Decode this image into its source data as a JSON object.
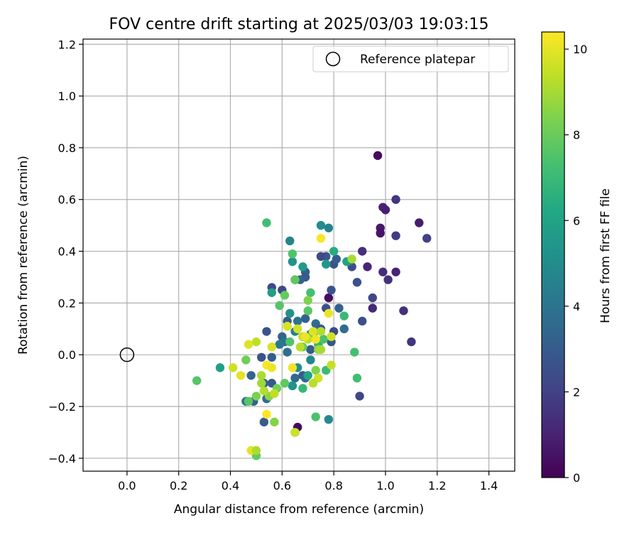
{
  "chart_data": {
    "type": "scatter",
    "title": "FOV centre drift starting at 2025/03/03 19:03:15",
    "xlabel": "Angular distance from reference (arcmin)",
    "ylabel": "Rotation from reference (arcmin)",
    "xlim": [
      -0.17,
      1.5
    ],
    "ylim": [
      -0.45,
      1.22
    ],
    "xticks": [
      0.0,
      0.2,
      0.4,
      0.6,
      0.8,
      1.0,
      1.2,
      1.4
    ],
    "xtick_labels": [
      "0.0",
      "0.2",
      "0.4",
      "0.6",
      "0.8",
      "1.0",
      "1.2",
      "1.4"
    ],
    "yticks": [
      -0.4,
      -0.2,
      0.0,
      0.2,
      0.4,
      0.6,
      0.8,
      1.0,
      1.2
    ],
    "ytick_labels": [
      "−0.4",
      "−0.2",
      "0.0",
      "0.2",
      "0.4",
      "0.6",
      "0.8",
      "1.0",
      "1.2"
    ],
    "grid": true,
    "legend": {
      "placement": "top-right",
      "entries": [
        "Reference platepar"
      ]
    },
    "reference_point": {
      "x": 0.0,
      "y": 0.0,
      "label": "Reference platepar"
    },
    "colorbar": {
      "label": "Hours from first FF file",
      "colormap": "viridis",
      "range": [
        0,
        10.4
      ],
      "ticks": [
        0,
        2,
        4,
        6,
        8,
        10
      ],
      "tick_labels": [
        "0",
        "2",
        "4",
        "6",
        "8",
        "10"
      ]
    },
    "points": [
      {
        "x": 0.97,
        "y": 0.77,
        "c": 0.3
      },
      {
        "x": 1.04,
        "y": 0.6,
        "c": 1.6
      },
      {
        "x": 0.99,
        "y": 0.57,
        "c": 1.0
      },
      {
        "x": 1.0,
        "y": 0.56,
        "c": 0.9
      },
      {
        "x": 1.13,
        "y": 0.51,
        "c": 0.8
      },
      {
        "x": 0.98,
        "y": 0.49,
        "c": 0.7
      },
      {
        "x": 0.98,
        "y": 0.47,
        "c": 0.6
      },
      {
        "x": 1.04,
        "y": 0.46,
        "c": 1.8
      },
      {
        "x": 1.16,
        "y": 0.45,
        "c": 2.0
      },
      {
        "x": 0.91,
        "y": 0.4,
        "c": 1.4
      },
      {
        "x": 0.93,
        "y": 0.34,
        "c": 1.1
      },
      {
        "x": 0.99,
        "y": 0.32,
        "c": 1.3
      },
      {
        "x": 1.04,
        "y": 0.32,
        "c": 1.0
      },
      {
        "x": 1.01,
        "y": 0.29,
        "c": 1.5
      },
      {
        "x": 0.89,
        "y": 0.28,
        "c": 2.6
      },
      {
        "x": 0.95,
        "y": 0.22,
        "c": 2.2
      },
      {
        "x": 0.95,
        "y": 0.18,
        "c": 1.2
      },
      {
        "x": 1.07,
        "y": 0.17,
        "c": 1.4
      },
      {
        "x": 0.91,
        "y": 0.13,
        "c": 2.5
      },
      {
        "x": 1.1,
        "y": 0.05,
        "c": 1.6
      },
      {
        "x": 0.9,
        "y": -0.16,
        "c": 2.2
      },
      {
        "x": 0.78,
        "y": 0.22,
        "c": 0.4
      },
      {
        "x": 0.66,
        "y": -0.28,
        "c": 0.3
      },
      {
        "x": 0.87,
        "y": 0.34,
        "c": 2.4
      },
      {
        "x": 0.86,
        "y": 0.36,
        "c": 3.7
      },
      {
        "x": 0.8,
        "y": 0.35,
        "c": 2.7
      },
      {
        "x": 0.81,
        "y": 0.37,
        "c": 3.0
      },
      {
        "x": 0.77,
        "y": 0.38,
        "c": 2.8
      },
      {
        "x": 0.75,
        "y": 0.38,
        "c": 2.3
      },
      {
        "x": 0.69,
        "y": 0.32,
        "c": 3.2
      },
      {
        "x": 0.69,
        "y": 0.3,
        "c": 2.9
      },
      {
        "x": 0.67,
        "y": 0.29,
        "c": 3.3
      },
      {
        "x": 0.65,
        "y": 0.29,
        "c": 2.6
      },
      {
        "x": 0.79,
        "y": 0.25,
        "c": 2.7
      },
      {
        "x": 0.56,
        "y": 0.26,
        "c": 2.4
      },
      {
        "x": 0.6,
        "y": 0.25,
        "c": 2.2
      },
      {
        "x": 0.82,
        "y": 0.18,
        "c": 3.2
      },
      {
        "x": 0.77,
        "y": 0.18,
        "c": 2.5
      },
      {
        "x": 0.62,
        "y": 0.13,
        "c": 3.0
      },
      {
        "x": 0.66,
        "y": 0.13,
        "c": 4.0
      },
      {
        "x": 0.69,
        "y": 0.14,
        "c": 3.3
      },
      {
        "x": 0.73,
        "y": 0.12,
        "c": 3.6
      },
      {
        "x": 0.75,
        "y": 0.1,
        "c": 2.9
      },
      {
        "x": 0.8,
        "y": 0.09,
        "c": 2.4
      },
      {
        "x": 0.84,
        "y": 0.1,
        "c": 3.7
      },
      {
        "x": 0.79,
        "y": 0.05,
        "c": 2.8
      },
      {
        "x": 0.72,
        "y": 0.07,
        "c": 2.3
      },
      {
        "x": 0.68,
        "y": 0.07,
        "c": 3.1
      },
      {
        "x": 0.65,
        "y": 0.09,
        "c": 4.5
      },
      {
        "x": 0.6,
        "y": 0.07,
        "c": 3.4
      },
      {
        "x": 0.61,
        "y": 0.05,
        "c": 3.9
      },
      {
        "x": 0.59,
        "y": 0.04,
        "c": 4.2
      },
      {
        "x": 0.71,
        "y": 0.02,
        "c": 3.0
      },
      {
        "x": 0.62,
        "y": 0.01,
        "c": 3.8
      },
      {
        "x": 0.54,
        "y": 0.09,
        "c": 2.7
      },
      {
        "x": 0.52,
        "y": -0.01,
        "c": 2.6
      },
      {
        "x": 0.56,
        "y": -0.01,
        "c": 3.1
      },
      {
        "x": 0.48,
        "y": -0.08,
        "c": 3.4
      },
      {
        "x": 0.56,
        "y": -0.11,
        "c": 2.8
      },
      {
        "x": 0.53,
        "y": -0.11,
        "c": 3.3
      },
      {
        "x": 0.65,
        "y": -0.09,
        "c": 3.6
      },
      {
        "x": 0.68,
        "y": -0.08,
        "c": 3.0
      },
      {
        "x": 0.69,
        "y": -0.09,
        "c": 3.4
      },
      {
        "x": 0.64,
        "y": -0.12,
        "c": 3.9
      },
      {
        "x": 0.54,
        "y": -0.17,
        "c": 3.7
      },
      {
        "x": 0.49,
        "y": -0.18,
        "c": 3.2
      },
      {
        "x": 0.46,
        "y": -0.18,
        "c": 4.0
      },
      {
        "x": 0.53,
        "y": -0.26,
        "c": 3.0
      },
      {
        "x": 0.65,
        "y": -0.3,
        "c": 2.5
      },
      {
        "x": 0.63,
        "y": 0.44,
        "c": 4.7
      },
      {
        "x": 0.75,
        "y": 0.5,
        "c": 5.0
      },
      {
        "x": 0.78,
        "y": 0.49,
        "c": 4.6
      },
      {
        "x": 0.68,
        "y": 0.34,
        "c": 5.6
      },
      {
        "x": 0.64,
        "y": 0.36,
        "c": 5.4
      },
      {
        "x": 0.56,
        "y": 0.24,
        "c": 5.8
      },
      {
        "x": 0.63,
        "y": 0.16,
        "c": 5.2
      },
      {
        "x": 0.77,
        "y": 0.35,
        "c": 5.5
      },
      {
        "x": 0.8,
        "y": 0.4,
        "c": 6.4
      },
      {
        "x": 0.85,
        "y": 0.36,
        "c": 6.0
      },
      {
        "x": 0.66,
        "y": -0.05,
        "c": 5.1
      },
      {
        "x": 0.71,
        "y": -0.02,
        "c": 4.8
      },
      {
        "x": 0.64,
        "y": -0.12,
        "c": 5.3
      },
      {
        "x": 0.7,
        "y": -0.08,
        "c": 6.1
      },
      {
        "x": 0.36,
        "y": -0.05,
        "c": 5.9
      },
      {
        "x": 0.78,
        "y": -0.25,
        "c": 4.9
      },
      {
        "x": 0.71,
        "y": 0.08,
        "c": 5.0
      },
      {
        "x": 0.54,
        "y": 0.51,
        "c": 7.2
      },
      {
        "x": 0.64,
        "y": 0.39,
        "c": 7.5
      },
      {
        "x": 0.65,
        "y": 0.29,
        "c": 7.8
      },
      {
        "x": 0.61,
        "y": 0.23,
        "c": 7.9
      },
      {
        "x": 0.71,
        "y": 0.24,
        "c": 7.3
      },
      {
        "x": 0.59,
        "y": 0.19,
        "c": 7.6
      },
      {
        "x": 0.7,
        "y": 0.21,
        "c": 8.4
      },
      {
        "x": 0.7,
        "y": 0.17,
        "c": 7.7
      },
      {
        "x": 0.84,
        "y": 0.15,
        "c": 7.0
      },
      {
        "x": 0.72,
        "y": 0.08,
        "c": 7.1
      },
      {
        "x": 0.74,
        "y": 0.04,
        "c": 6.8
      },
      {
        "x": 0.76,
        "y": 0.06,
        "c": 7.4
      },
      {
        "x": 0.88,
        "y": 0.01,
        "c": 7.3
      },
      {
        "x": 0.68,
        "y": 0.03,
        "c": 8.0
      },
      {
        "x": 0.63,
        "y": 0.05,
        "c": 7.5
      },
      {
        "x": 0.77,
        "y": -0.06,
        "c": 7.0
      },
      {
        "x": 0.89,
        "y": -0.09,
        "c": 7.2
      },
      {
        "x": 0.68,
        "y": -0.13,
        "c": 6.9
      },
      {
        "x": 0.61,
        "y": -0.11,
        "c": 7.8
      },
      {
        "x": 0.58,
        "y": -0.13,
        "c": 8.2
      },
      {
        "x": 0.5,
        "y": -0.16,
        "c": 8.3
      },
      {
        "x": 0.47,
        "y": -0.18,
        "c": 7.7
      },
      {
        "x": 0.55,
        "y": -0.16,
        "c": 8.6
      },
      {
        "x": 0.73,
        "y": -0.24,
        "c": 7.4
      },
      {
        "x": 0.57,
        "y": -0.26,
        "c": 8.5
      },
      {
        "x": 0.5,
        "y": -0.39,
        "c": 7.9
      },
      {
        "x": 0.27,
        "y": -0.1,
        "c": 7.6
      },
      {
        "x": 0.46,
        "y": -0.02,
        "c": 8.1
      },
      {
        "x": 0.74,
        "y": 0.02,
        "c": 8.8
      },
      {
        "x": 0.73,
        "y": -0.06,
        "c": 8.4
      },
      {
        "x": 0.87,
        "y": 0.37,
        "c": 9.0
      },
      {
        "x": 0.75,
        "y": 0.45,
        "c": 10.3
      },
      {
        "x": 0.78,
        "y": 0.16,
        "c": 10.1
      },
      {
        "x": 0.62,
        "y": 0.11,
        "c": 10.0
      },
      {
        "x": 0.66,
        "y": 0.1,
        "c": 9.7
      },
      {
        "x": 0.68,
        "y": 0.07,
        "c": 9.5
      },
      {
        "x": 0.7,
        "y": 0.06,
        "c": 9.3
      },
      {
        "x": 0.72,
        "y": 0.09,
        "c": 9.9
      },
      {
        "x": 0.75,
        "y": 0.09,
        "c": 9.2
      },
      {
        "x": 0.79,
        "y": 0.07,
        "c": 9.6
      },
      {
        "x": 0.73,
        "y": 0.06,
        "c": 10.2
      },
      {
        "x": 0.56,
        "y": 0.03,
        "c": 9.8
      },
      {
        "x": 0.5,
        "y": 0.05,
        "c": 9.4
      },
      {
        "x": 0.47,
        "y": 0.04,
        "c": 9.9
      },
      {
        "x": 0.41,
        "y": -0.05,
        "c": 9.6
      },
      {
        "x": 0.44,
        "y": -0.08,
        "c": 10.0
      },
      {
        "x": 0.54,
        "y": -0.04,
        "c": 10.3
      },
      {
        "x": 0.56,
        "y": -0.05,
        "c": 10.1
      },
      {
        "x": 0.52,
        "y": -0.08,
        "c": 9.1
      },
      {
        "x": 0.64,
        "y": -0.05,
        "c": 10.2
      },
      {
        "x": 0.75,
        "y": 0.02,
        "c": 9.0
      },
      {
        "x": 0.79,
        "y": -0.04,
        "c": 9.5
      },
      {
        "x": 0.74,
        "y": -0.09,
        "c": 9.7
      },
      {
        "x": 0.72,
        "y": -0.11,
        "c": 9.3
      },
      {
        "x": 0.52,
        "y": -0.11,
        "c": 8.9
      },
      {
        "x": 0.53,
        "y": -0.14,
        "c": 9.2
      },
      {
        "x": 0.54,
        "y": -0.23,
        "c": 10.4
      },
      {
        "x": 0.65,
        "y": -0.3,
        "c": 9.6
      },
      {
        "x": 0.48,
        "y": -0.37,
        "c": 10.0
      },
      {
        "x": 0.5,
        "y": -0.37,
        "c": 9.1
      },
      {
        "x": 0.57,
        "y": -0.15,
        "c": 9.4
      },
      {
        "x": 0.62,
        "y": 0.11,
        "c": 9.8
      },
      {
        "x": 0.69,
        "y": 0.07,
        "c": 10.1
      },
      {
        "x": 0.67,
        "y": 0.03,
        "c": 9.3
      }
    ]
  }
}
